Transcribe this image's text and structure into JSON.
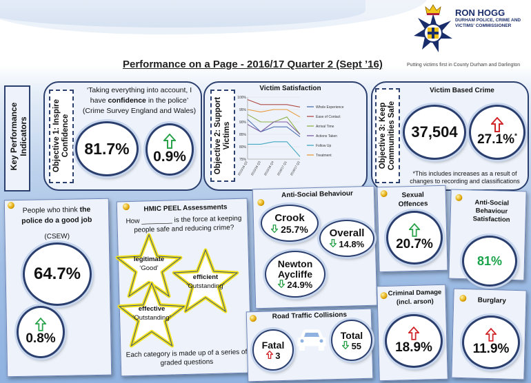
{
  "header": {
    "title": "Performance on a Page - 2016/17 Quarter 2 (Sept ’16)",
    "org_name": "RON HOGG",
    "org_sub": "DURHAM POLICE, CRIME AND VICTIMS' COMMISSIONER",
    "tagline": "Putting victims first in County Durham and Darlington"
  },
  "kpi": {
    "label": "Key Performance Indicators"
  },
  "objective1": {
    "label": "Objective 1: Inspire Confidence",
    "quote_before": "‘Taking everything into account, I have ",
    "quote_bold": "confidence",
    "quote_after": " in the police’",
    "source": "(Crime Survey England and Wales)",
    "value": "81.7%",
    "change": "0.9%"
  },
  "objective2": {
    "label": "Objective 2: Support Victims"
  },
  "objective3": {
    "label": "Objective 3: Keep Communities Safe",
    "title": "Victim Based Crime",
    "value": "37,504",
    "change": "27.1%",
    "change_mark": "*",
    "note": "*This includes increases as a result of changes to recording and classifications"
  },
  "chart_data": {
    "type": "line",
    "title": "Victim Satisfaction",
    "x": [
      "2015/16 Q2",
      "2015/16 Q3",
      "2015/16 Q4",
      "2016/17 Q1",
      "2016/17 Q2"
    ],
    "ylim": [
      75,
      100
    ],
    "yticks": [
      "75%",
      "80%",
      "85%",
      "90%",
      "95%",
      "100%"
    ],
    "series": [
      {
        "name": "Whole Experience",
        "color": "#4f6fb0",
        "values": [
          91,
          86,
          88,
          88,
          84
        ]
      },
      {
        "name": "Ease of Contact",
        "color": "#b04a46",
        "values": [
          99,
          97,
          97,
          97,
          96
        ]
      },
      {
        "name": "Arrival Time",
        "color": "#8fb04a",
        "values": [
          93,
          90,
          90,
          92,
          85
        ]
      },
      {
        "name": "Actions Taken",
        "color": "#7a5aa0",
        "values": [
          89,
          86,
          90,
          90,
          85
        ]
      },
      {
        "name": "Follow Up",
        "color": "#3fa6c0",
        "values": [
          81,
          81,
          82,
          82,
          76
        ]
      },
      {
        "name": "Treatment",
        "color": "#e89a3a",
        "values": [
          95,
          94,
          95,
          95,
          92
        ]
      }
    ]
  },
  "people_card": {
    "text_before": "People who think ",
    "text_bold": "the police do a good job",
    "source": "(CSEW)",
    "value": "64.7%",
    "change": "0.8%"
  },
  "hmic": {
    "title": "HMIC PEEL Assessments",
    "question": "How ________ is the force at keeping people safe and reducing crime?",
    "stars": [
      {
        "label": "legitimate",
        "grade": "‘Good’"
      },
      {
        "label": "efficient",
        "grade": "‘Outstanding’"
      },
      {
        "label": "effective",
        "grade": "‘Outstanding’"
      }
    ],
    "footer": "Each category is made up of a series of graded questions"
  },
  "asb": {
    "title": "Anti-Social Behaviour",
    "crook_label": "Crook",
    "crook_value": "25.7%",
    "overall_label": "Overall",
    "overall_value": "14.8%",
    "newton_label_1": "Newton",
    "newton_label_2": "Aycliffe",
    "newton_value": "24.9%"
  },
  "rtc": {
    "title": "Road Traffic Collisions",
    "fatal_label": "Fatal",
    "fatal_value": "3",
    "total_label": "Total",
    "total_value": "55"
  },
  "sexual": {
    "title": "Sexual Offences",
    "value": "20.7%"
  },
  "asb_sat": {
    "title": "Anti-Social Behaviour Satisfaction",
    "value": "81%",
    "value_color": "#1aa34a"
  },
  "criminal": {
    "title": "Criminal Damage (incl. arson)",
    "value": "18.9%"
  },
  "burglary": {
    "title": "Burglary",
    "value": "11.9%"
  }
}
